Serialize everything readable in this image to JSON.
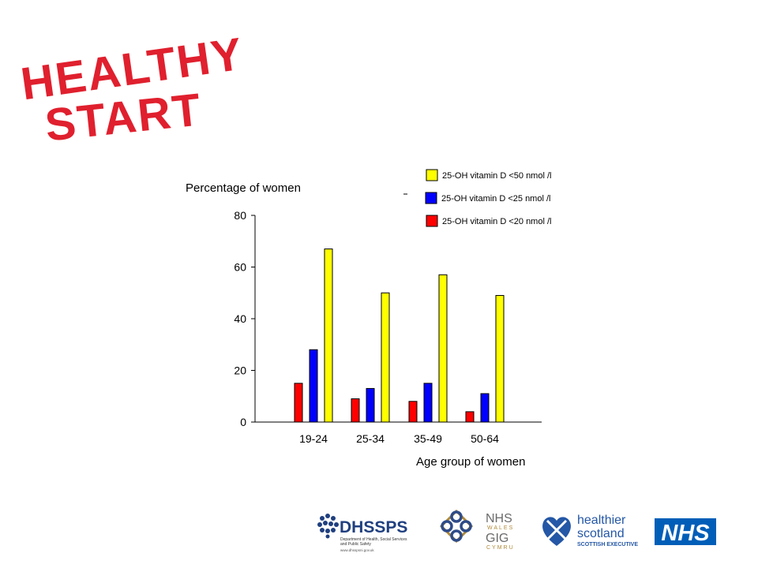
{
  "brand": {
    "logo_line1": "HEALTHY",
    "logo_line2": "START",
    "logo_color": "#e0202e"
  },
  "chart_data": {
    "type": "bar",
    "title": "",
    "ylabel": "Percentage of women",
    "xlabel": "Age group of women",
    "categories": [
      "19-24",
      "25-34",
      "35-49",
      "50-64"
    ],
    "ylim": [
      0,
      80
    ],
    "yticks": [
      0,
      20,
      40,
      60,
      80
    ],
    "grid": false,
    "legend_position": "top-right",
    "series": [
      {
        "name": "25-OH vitamin D <20 nmol /l",
        "color": "#ff0000",
        "values": [
          15,
          9,
          8,
          4
        ]
      },
      {
        "name": "25-OH vitamin D <25 nmol /l",
        "color": "#0000ff",
        "values": [
          28,
          13,
          15,
          11
        ]
      },
      {
        "name": "25-OH vitamin D <50 nmol /l",
        "color": "#ffff00",
        "values": [
          67,
          50,
          57,
          49
        ]
      }
    ],
    "legend_order": [
      2,
      1,
      0
    ]
  },
  "footer": {
    "dhssps": {
      "name": "DHSSPS",
      "line1": "Department of Health, Social Services",
      "line2": "and Public Safety",
      "url": "www.dhsspsni.gov.uk"
    },
    "nhs_wales": {
      "nhs": "NHS",
      "wales": "WALES",
      "gig": "GIG",
      "cymru": "CYMRU"
    },
    "healthier_scotland": {
      "line1": "healthier",
      "line2": "scotland",
      "line3": "SCOTTISH EXECUTIVE"
    },
    "nhs": {
      "label": "NHS",
      "color": "#005eb8"
    }
  }
}
